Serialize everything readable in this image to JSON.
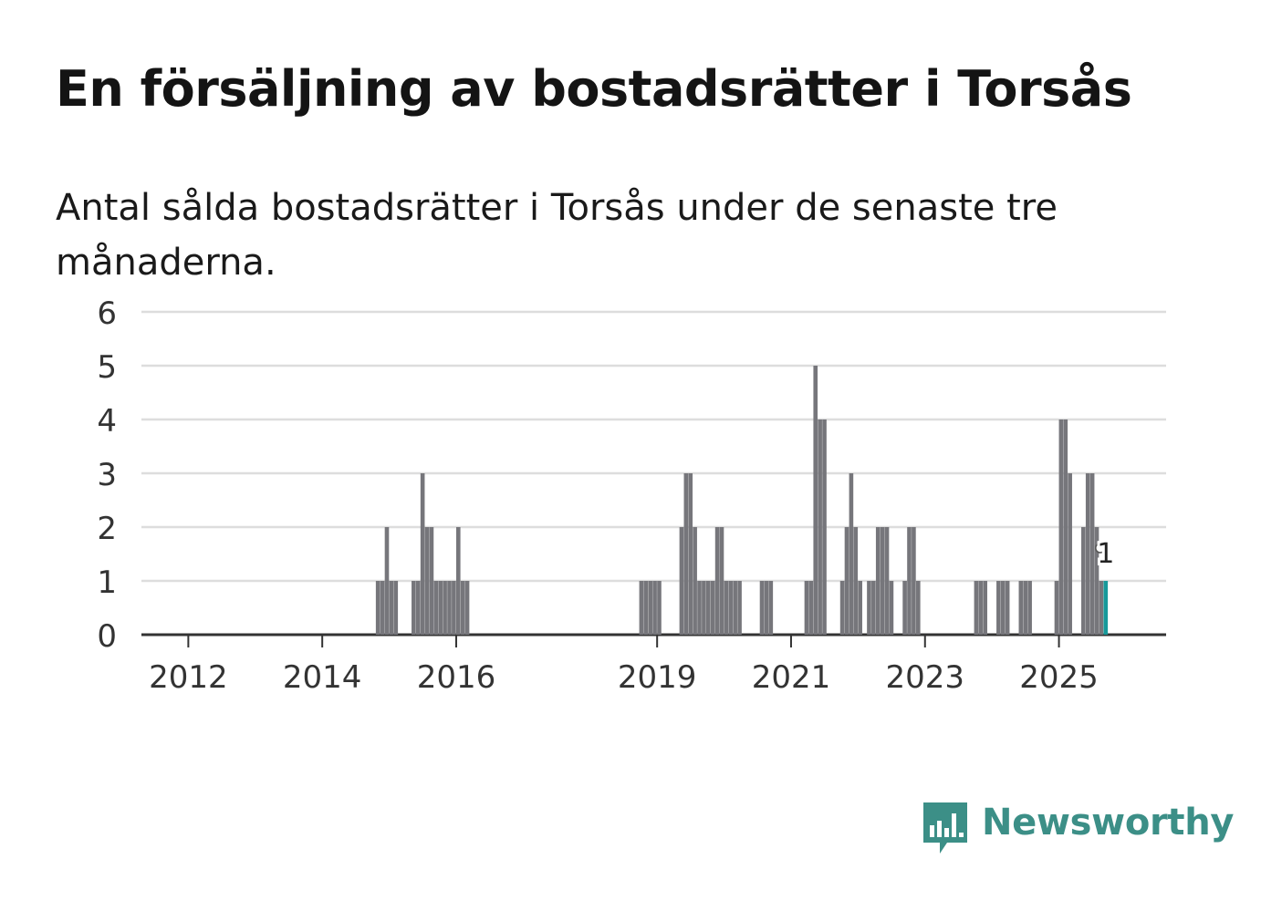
{
  "title": "En försäljning av bostadsrätter i Torsås",
  "subtitle": "Antal sålda bostadsrätter i Torsås under de senaste tre månaderna.",
  "brand": "Newsworthy",
  "colors": {
    "bar": "#76767b",
    "highlight": "#17999a",
    "grid": "#dddddd",
    "axis": "#333333",
    "brand": "#3c8f87"
  },
  "chart_data": {
    "type": "bar",
    "title": "Antal sålda bostadsrätter i Torsås",
    "xlabel": "",
    "ylabel": "",
    "ylim": [
      0,
      6
    ],
    "yticks": [
      0,
      1,
      2,
      3,
      4,
      5,
      6
    ],
    "xrange": [
      2011.3,
      2026.6
    ],
    "xticks": [
      {
        "label": "2012",
        "x": 2012
      },
      {
        "label": "2014",
        "x": 2014
      },
      {
        "label": "2016",
        "x": 2016
      },
      {
        "label": "2019",
        "x": 2019
      },
      {
        "label": "2021",
        "x": 2021
      },
      {
        "label": "2023",
        "x": 2023
      },
      {
        "label": "2025",
        "x": 2025
      }
    ],
    "bars": [
      [
        2014.8,
        1
      ],
      [
        2014.8667,
        1
      ],
      [
        2014.9333,
        2
      ],
      [
        2015.0,
        1
      ],
      [
        2015.0667,
        1
      ],
      [
        2015.3333,
        1
      ],
      [
        2015.4,
        1
      ],
      [
        2015.4667,
        3
      ],
      [
        2015.5333,
        2
      ],
      [
        2015.6,
        2
      ],
      [
        2015.6667,
        1
      ],
      [
        2015.7333,
        1
      ],
      [
        2015.8,
        1
      ],
      [
        2015.8667,
        1
      ],
      [
        2015.9333,
        1
      ],
      [
        2016.0,
        2
      ],
      [
        2016.0667,
        1
      ],
      [
        2016.1333,
        1
      ],
      [
        2018.7333,
        1
      ],
      [
        2018.8,
        1
      ],
      [
        2018.8667,
        1
      ],
      [
        2018.9333,
        1
      ],
      [
        2019.0,
        1
      ],
      [
        2019.3333,
        2
      ],
      [
        2019.4,
        3
      ],
      [
        2019.4667,
        3
      ],
      [
        2019.5333,
        2
      ],
      [
        2019.6,
        1
      ],
      [
        2019.6667,
        1
      ],
      [
        2019.7333,
        1
      ],
      [
        2019.8,
        1
      ],
      [
        2019.8667,
        2
      ],
      [
        2019.9333,
        2
      ],
      [
        2020.0,
        1
      ],
      [
        2020.0667,
        1
      ],
      [
        2020.1333,
        1
      ],
      [
        2020.2,
        1
      ],
      [
        2020.5333,
        1
      ],
      [
        2020.6,
        1
      ],
      [
        2020.6667,
        1
      ],
      [
        2021.2,
        1
      ],
      [
        2021.2667,
        1
      ],
      [
        2021.3333,
        5
      ],
      [
        2021.4,
        4
      ],
      [
        2021.4667,
        4
      ],
      [
        2021.7333,
        1
      ],
      [
        2021.8,
        2
      ],
      [
        2021.8667,
        3
      ],
      [
        2021.9333,
        2
      ],
      [
        2022.0,
        1
      ],
      [
        2022.1333,
        1
      ],
      [
        2022.2,
        1
      ],
      [
        2022.2667,
        2
      ],
      [
        2022.3333,
        2
      ],
      [
        2022.4,
        2
      ],
      [
        2022.4667,
        1
      ],
      [
        2022.6667,
        1
      ],
      [
        2022.7333,
        2
      ],
      [
        2022.8,
        2
      ],
      [
        2022.8667,
        1
      ],
      [
        2023.7333,
        1
      ],
      [
        2023.8,
        1
      ],
      [
        2023.8667,
        1
      ],
      [
        2024.0667,
        1
      ],
      [
        2024.1333,
        1
      ],
      [
        2024.2,
        1
      ],
      [
        2024.4,
        1
      ],
      [
        2024.4667,
        1
      ],
      [
        2024.5333,
        1
      ],
      [
        2024.9333,
        1
      ],
      [
        2025.0,
        4
      ],
      [
        2025.0667,
        4
      ],
      [
        2025.1333,
        3
      ],
      [
        2025.3333,
        2
      ],
      [
        2025.4,
        3
      ],
      [
        2025.4667,
        3
      ],
      [
        2025.5333,
        2
      ],
      [
        2025.6,
        1
      ]
    ],
    "highlight": {
      "x": 2025.6667,
      "value": 1,
      "label": "1"
    }
  }
}
